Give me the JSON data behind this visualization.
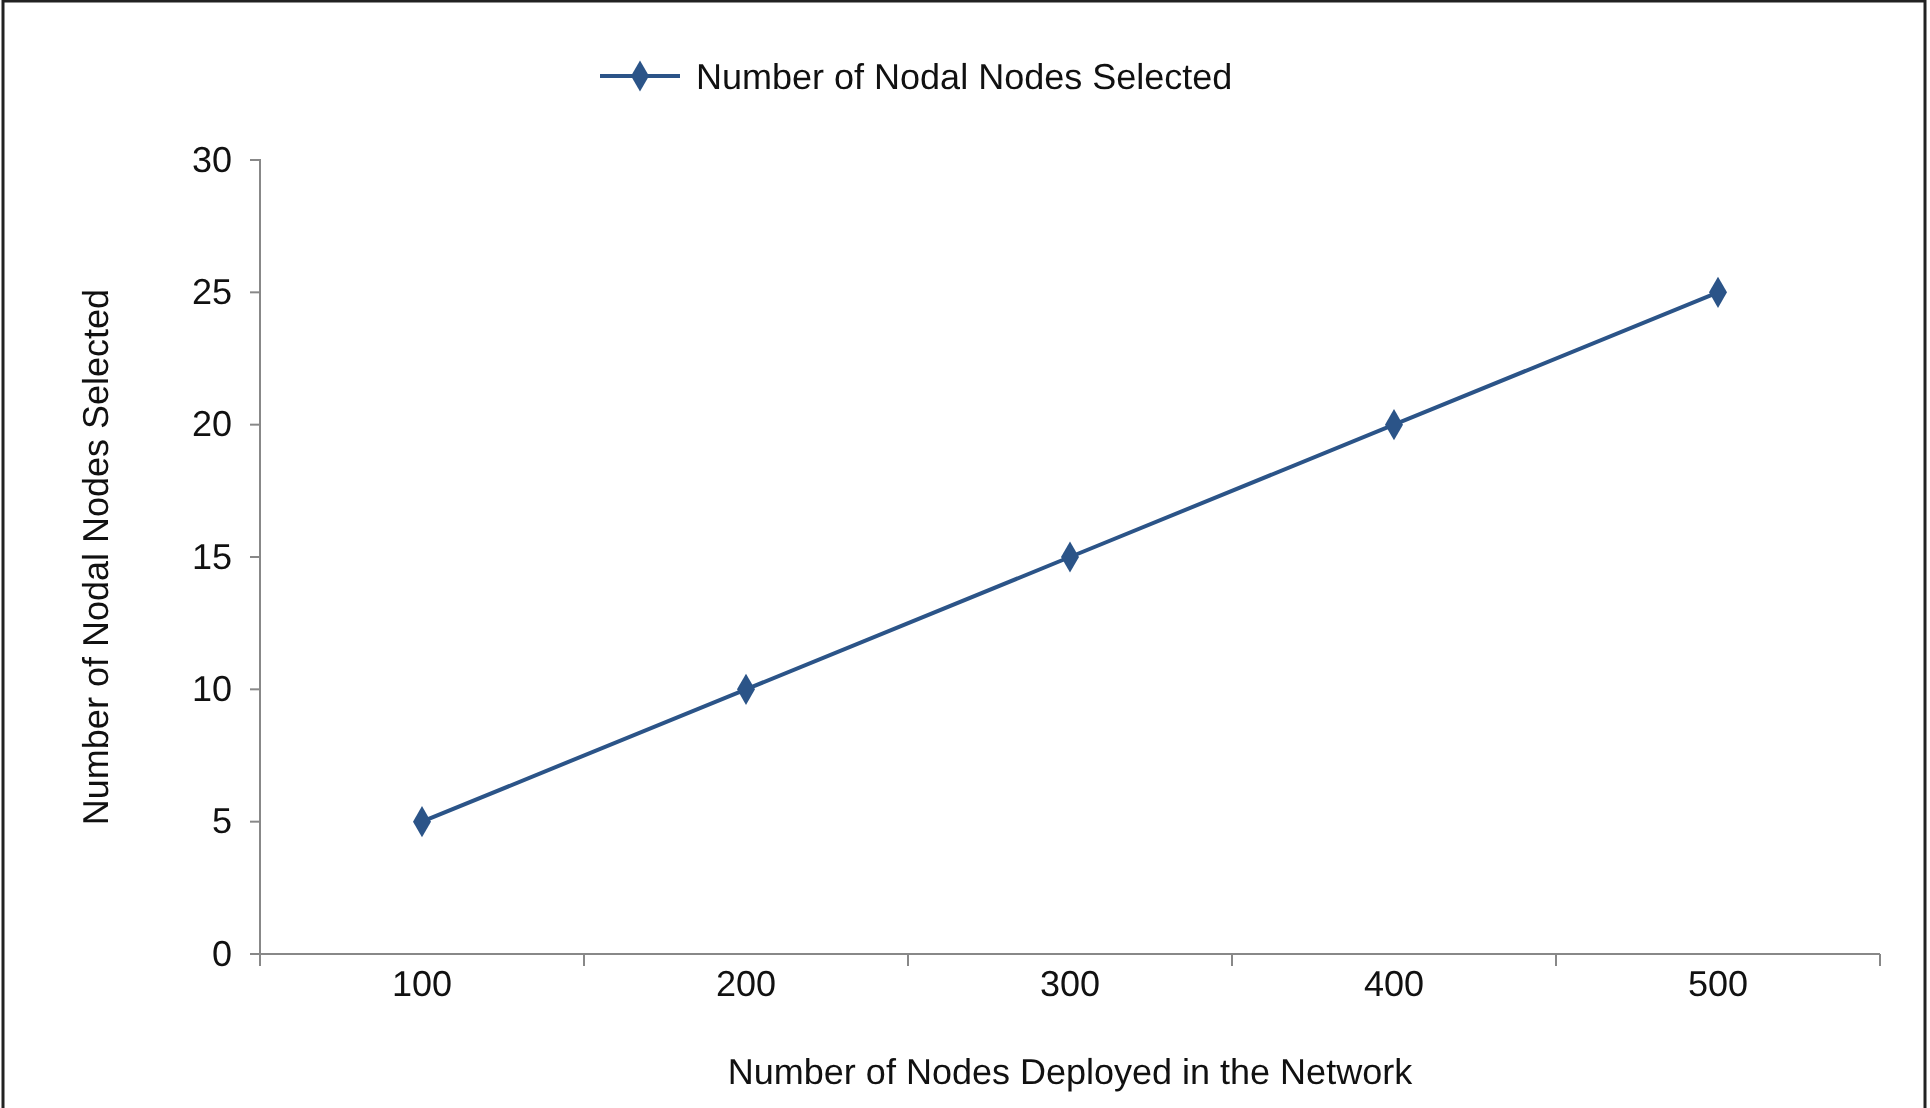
{
  "chart_data": {
    "type": "line",
    "xlabel": "Number of Nodes Deployed in the Network",
    "ylabel": "Number of Nodal Nodes Selected",
    "categories": [
      "100",
      "200",
      "300",
      "400",
      "500"
    ],
    "series": [
      {
        "name": "Number of Nodal Nodes Selected",
        "color": "#2b5488",
        "values": [
          5,
          10,
          15,
          20,
          25
        ]
      }
    ],
    "ylim": [
      0,
      30
    ],
    "yticks": [
      0,
      5,
      10,
      15,
      20,
      25,
      30
    ],
    "legend": "top",
    "marker": "diamond",
    "line_style": "solid",
    "grid": false
  }
}
